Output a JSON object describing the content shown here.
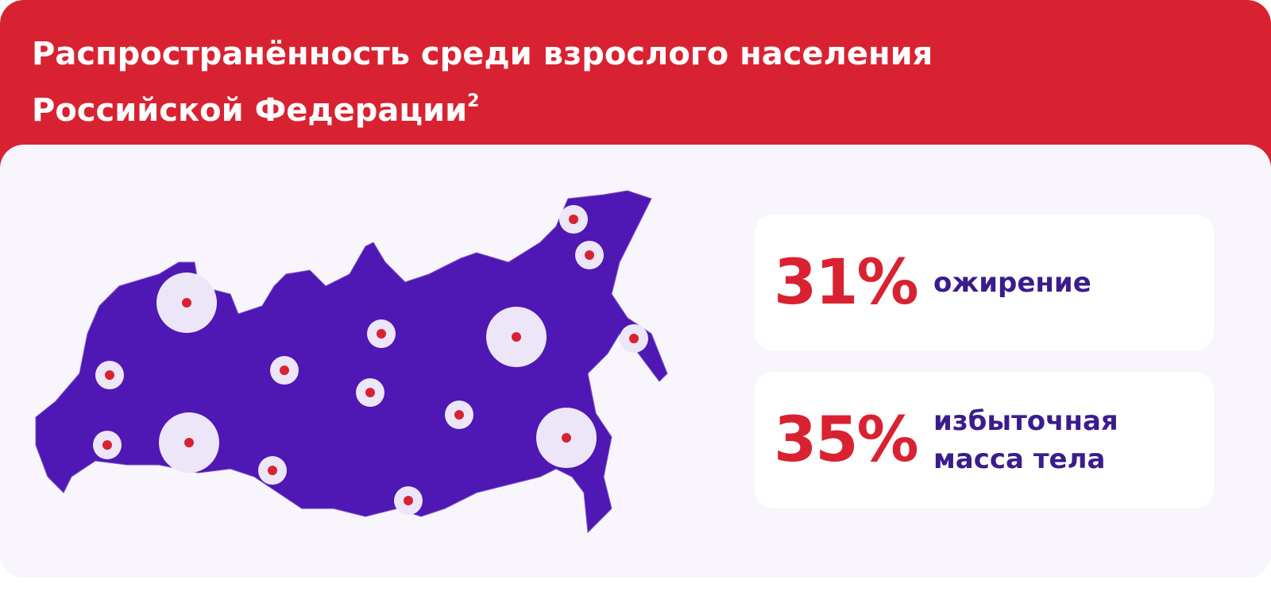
{
  "header": {
    "title_lines": [
      "Распространённость среди взрослого населения",
      "Российской Федерации"
    ],
    "footnote": "2"
  },
  "stats": [
    {
      "value": "31%",
      "label_lines": [
        "ожирение"
      ]
    },
    {
      "value": "35%",
      "label_lines": [
        "избыточная",
        "масса тела"
      ]
    }
  ]
}
